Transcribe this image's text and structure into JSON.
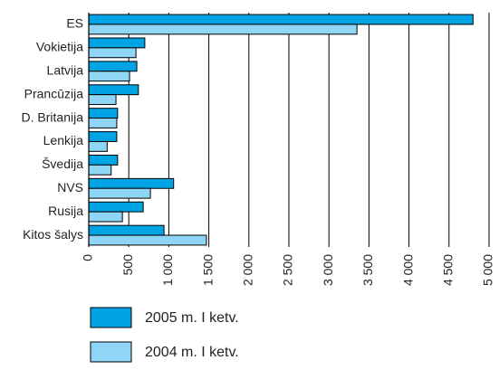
{
  "chart_data": {
    "type": "bar",
    "orientation": "horizontal",
    "categories": [
      "ES",
      "Vokietija",
      "Latvija",
      "Prancūzija",
      "D. Britanija",
      "Lenkija",
      "Švedija",
      "NVS",
      "Rusija",
      "Kitos šalys"
    ],
    "series": [
      {
        "name": "2005 m. I ketv.",
        "color": "#00a3e4",
        "values": [
          4800,
          700,
          600,
          620,
          360,
          350,
          360,
          1060,
          680,
          940
        ]
      },
      {
        "name": "2004 m. I ketv.",
        "color": "#8fd6f6",
        "values": [
          3350,
          590,
          510,
          340,
          350,
          230,
          280,
          770,
          420,
          1470
        ]
      }
    ],
    "xlim": [
      0,
      5000
    ],
    "xticks": [
      0,
      500,
      {
        "value": 1000,
        "label": "1 000"
      },
      {
        "value": 1500,
        "label": "1 500"
      },
      {
        "value": 2000,
        "label": "2 000"
      },
      {
        "value": 2500,
        "label": "2 500"
      },
      {
        "value": 3000,
        "label": "3 000"
      },
      {
        "value": 3500,
        "label": "3 500"
      },
      {
        "value": 4000,
        "label": "4 000"
      },
      {
        "value": 4500,
        "label": "4 500"
      },
      {
        "value": 5000,
        "label": "5 000"
      }
    ],
    "grid": true
  }
}
